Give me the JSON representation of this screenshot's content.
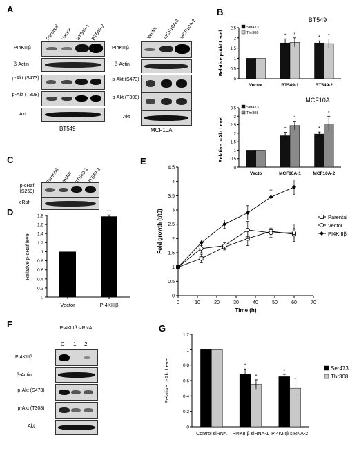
{
  "panels": {
    "A": "A",
    "B": "B",
    "C": "C",
    "D": "D",
    "E": "E",
    "F": "F",
    "G": "G"
  },
  "panelA_left": {
    "lanes": [
      "Parental",
      "Vector",
      "BT549-1",
      "BT549-2"
    ],
    "rows": [
      "PI4KIIIβ",
      "β-Actin",
      "p-Akt (S473)",
      "p-Akt (T308)",
      "Akt"
    ],
    "caption": "BT549"
  },
  "panelA_right": {
    "lanes": [
      "Vector",
      "MCF10A-1",
      "MCF10A-2"
    ],
    "rows": [
      "PI4KIIIβ",
      "β-Actin",
      "p-Akt (S473)",
      "p-Akt (T308)",
      "Akt"
    ],
    "caption": "MCF10A"
  },
  "panelC": {
    "lanes": [
      "Parental",
      "Vector",
      "BT549-1",
      "BT549-2"
    ],
    "rows": [
      "p-cRaf (S259)",
      "cRaf"
    ]
  },
  "panelF": {
    "header": "PI4KIIIβ siRNA",
    "lanes": [
      "C",
      "1",
      "2"
    ],
    "rows": [
      "PI4KIIIβ",
      "β-Actin",
      "p-Akt (S473)",
      "p-Akt (T308)",
      "Akt"
    ]
  },
  "chart_data": [
    {
      "id": "B_top",
      "type": "bar",
      "title": "BT549",
      "ylabel": "Relative p-Akt Level",
      "categories": [
        "Vector",
        "BT549-1",
        "BT549-2"
      ],
      "series": [
        {
          "name": "Ser473",
          "color": "#111111",
          "values": [
            1,
            1.75,
            1.75
          ],
          "errors": [
            0,
            0.2,
            0.1
          ]
        },
        {
          "name": "Thr308",
          "color": "#c8c8c8",
          "values": [
            1,
            1.78,
            1.72
          ],
          "errors": [
            0,
            0.22,
            0.22
          ]
        }
      ],
      "ylim": [
        0,
        2.5
      ],
      "yticks": [
        0,
        0.5,
        1,
        1.5,
        2,
        2.5
      ],
      "annotations": [
        "*",
        "*",
        "*",
        "*"
      ]
    },
    {
      "id": "B_bottom",
      "type": "bar",
      "title": "MCF10A",
      "ylabel": "Relative p-Akt Level",
      "categories": [
        "Vecto",
        "MCF10A-1",
        "MCF10A-2"
      ],
      "series": [
        {
          "name": "Ser473",
          "color": "#111111",
          "values": [
            1,
            1.85,
            1.95
          ],
          "errors": [
            0,
            0.2,
            0.12
          ]
        },
        {
          "name": "Thr308",
          "color": "#8a8a8a",
          "values": [
            1,
            2.45,
            2.55
          ],
          "errors": [
            0,
            0.25,
            0.45
          ]
        }
      ],
      "ylim": [
        0,
        3.5
      ],
      "yticks": [
        0,
        0.5,
        1,
        1.5,
        2,
        2.5,
        3,
        3.5
      ],
      "annotations": [
        "*",
        "*",
        "*",
        "*"
      ]
    },
    {
      "id": "D",
      "type": "bar",
      "ylabel": "Relative p-cRaf level",
      "categories": [
        "Vector",
        "PI4KIIIβ"
      ],
      "values": [
        1,
        1.78
      ],
      "errors": [
        0,
        0.03
      ],
      "ylim": [
        0,
        1.8
      ],
      "yticks": [
        0,
        0.2,
        0.4,
        0.6,
        0.8,
        1,
        1.2,
        1.4,
        1.6,
        1.8
      ],
      "annotations": [
        "**"
      ]
    },
    {
      "id": "E",
      "type": "line",
      "xlabel": "Time (h)",
      "ylabel": "Fold growth (t/t0)",
      "x": [
        0,
        12,
        24,
        36,
        48,
        60
      ],
      "series": [
        {
          "name": "Parental",
          "marker": "open-square",
          "values": [
            1,
            1.3,
            1.7,
            2.0,
            2.25,
            2.15
          ],
          "errors": [
            0.05,
            0.15,
            0.1,
            0.25,
            0.15,
            0.2
          ]
        },
        {
          "name": "Vector",
          "marker": "open-circle",
          "values": [
            1,
            1.65,
            1.75,
            2.3,
            2.2,
            2.2
          ],
          "errors": [
            0.05,
            0.15,
            0.1,
            0.3,
            0.15,
            0.3
          ]
        },
        {
          "name": "PI4KIIIβ",
          "marker": "diamond",
          "values": [
            1,
            1.85,
            2.5,
            2.9,
            3.45,
            3.8
          ],
          "errors": [
            0.05,
            0.1,
            0.15,
            0.25,
            0.25,
            0.25
          ]
        }
      ],
      "xlim": [
        0,
        70
      ],
      "ylim": [
        0,
        4.5
      ],
      "xticks": [
        0,
        10,
        20,
        30,
        40,
        50,
        60,
        70
      ],
      "yticks": [
        0,
        0.5,
        1,
        1.5,
        2,
        2.5,
        3,
        3.5,
        4,
        4.5
      ]
    },
    {
      "id": "G",
      "type": "bar",
      "ylabel": "Relative p-Akt Level",
      "categories": [
        "Control siRNA",
        "PI4KIIIβ siRNA-1",
        "PI4KIIIβ siRNA-2"
      ],
      "series": [
        {
          "name": "Ser473",
          "color": "#000000",
          "values": [
            1,
            0.68,
            0.65
          ],
          "errors": [
            0,
            0.07,
            0.03
          ]
        },
        {
          "name": "Thr308",
          "color": "#c8c8c8",
          "values": [
            1,
            0.55,
            0.5
          ],
          "errors": [
            0,
            0.06,
            0.07
          ]
        }
      ],
      "ylim": [
        0,
        1.2
      ],
      "yticks": [
        0,
        0.2,
        0.4,
        0.6,
        0.8,
        1,
        1.2
      ],
      "annotations": [
        "*",
        "*",
        "*",
        "*"
      ]
    }
  ]
}
